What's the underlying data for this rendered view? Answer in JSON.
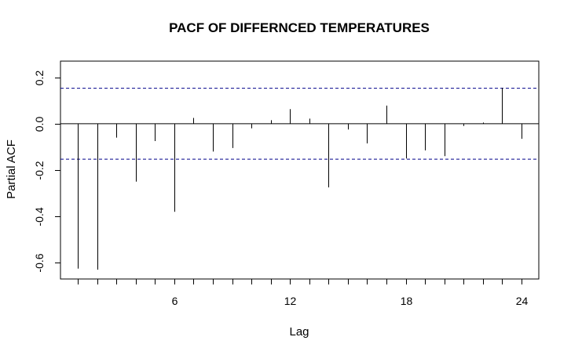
{
  "chart_data": {
    "type": "bar",
    "title": "PACF OF DIFFERNCED TEMPERATURES",
    "xlabel": "Lag",
    "ylabel": "Partial ACF",
    "xlim": [
      0.1,
      24.9
    ],
    "ylim": [
      -0.67,
      0.27
    ],
    "x_ticks": [
      6,
      12,
      18,
      24
    ],
    "y_ticks": [
      -0.6,
      -0.4,
      -0.2,
      0.0,
      0.2
    ],
    "y_tick_labels": [
      "-0.6",
      "-0.4",
      "-0.2",
      "0.0",
      "0.2"
    ],
    "confidence_bound": 0.153,
    "grid": false,
    "colors": {
      "bars": "#000000",
      "bounds": "#00008b",
      "axes": "#000000"
    },
    "lags": [
      1,
      2,
      3,
      4,
      5,
      6,
      7,
      8,
      9,
      10,
      11,
      12,
      13,
      14,
      15,
      16,
      17,
      18,
      19,
      20,
      21,
      22,
      23,
      24
    ],
    "values": [
      -0.625,
      -0.63,
      -0.06,
      -0.25,
      -0.075,
      -0.38,
      0.025,
      -0.12,
      -0.105,
      -0.02,
      0.015,
      0.063,
      0.022,
      -0.275,
      -0.025,
      -0.085,
      0.078,
      -0.15,
      -0.115,
      -0.14,
      -0.01,
      0.005,
      0.155,
      -0.065
    ]
  }
}
